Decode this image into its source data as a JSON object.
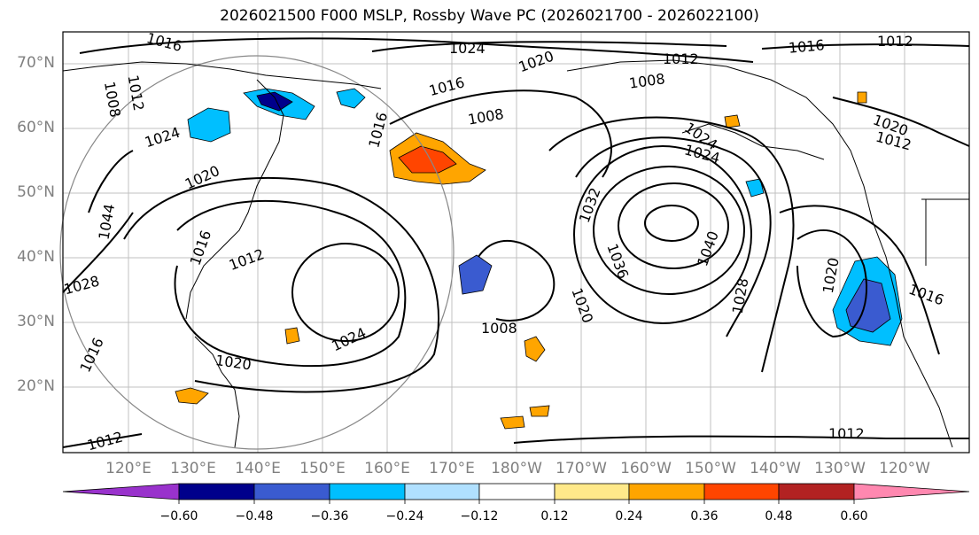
{
  "title": "2026021500 F000 MSLP, Rossby Wave PC (2026021700 - 2026022100)",
  "lat_labels": [
    "70°N",
    "60°N",
    "50°N",
    "40°N",
    "30°N",
    "20°N"
  ],
  "lon_labels": [
    "120°E",
    "130°E",
    "140°E",
    "150°E",
    "160°E",
    "170°E",
    "180°W",
    "170°W",
    "160°W",
    "150°W",
    "140°W",
    "130°W",
    "120°W"
  ],
  "contour_labels": [
    "1016",
    "1024",
    "1020",
    "1012",
    "1016",
    "1012",
    "1008",
    "1012",
    "1008",
    "1016",
    "1008",
    "1020",
    "1024",
    "1024",
    "1020",
    "1016",
    "1012",
    "1028",
    "1016",
    "1024",
    "1020",
    "1008",
    "1032",
    "1036",
    "1040",
    "1028",
    "1024",
    "1020",
    "1012",
    "1016",
    "1012",
    "1016",
    "1020",
    "1012",
    "1044"
  ],
  "colorbar": {
    "ticks": [
      "−0.60",
      "−0.48",
      "−0.36",
      "−0.24",
      "−0.12",
      "0.12",
      "0.24",
      "0.36",
      "0.48",
      "0.60"
    ],
    "colors": [
      "#9932cc",
      "#00008b",
      "#3a5bd0",
      "#00bfff",
      "#b0e0ff",
      "#ffffff",
      "#ffe98a",
      "#ffa500",
      "#ff4500",
      "#b22222",
      "#ff88b0"
    ]
  }
}
